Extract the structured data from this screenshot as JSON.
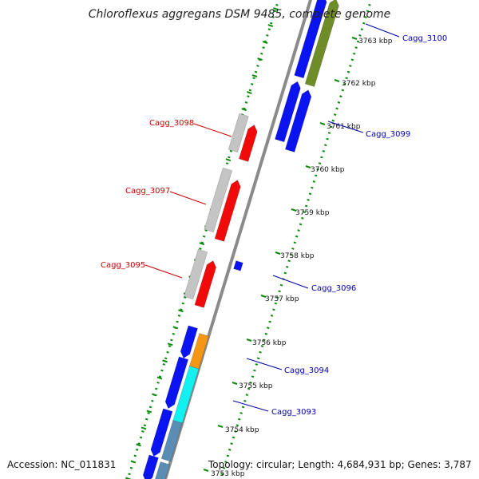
{
  "title": "Chloroflexus aggregans DSM 9485, complete genome",
  "accession": "Accession: NC_011831",
  "summary": "Topology: circular; Length: 4,684,931 bp; Genes: 3,787",
  "colors": {
    "blue": "#0a14f0",
    "red": "#f00a0a",
    "grey": "#c4c4c4",
    "olive": "#6e8c28",
    "orange": "#f59614",
    "cyan": "#14f0f0",
    "steel": "#5a8cb4",
    "backbone": "#8a8a8a",
    "dots": "#0a8c0a",
    "label_red": "#cc0000",
    "label_blue": "#0000aa"
  },
  "ticks": [
    {
      "label": "3763 kbp"
    },
    {
      "label": "3762 kbp"
    },
    {
      "label": "3761 kbp"
    },
    {
      "label": "3760 kbp"
    },
    {
      "label": "3759 kbp"
    },
    {
      "label": "3758 kbp"
    },
    {
      "label": "3757 kbp"
    },
    {
      "label": "3756 kbp"
    },
    {
      "label": "3755 kbp"
    },
    {
      "label": "3754 kbp"
    },
    {
      "label": "3753 kbp"
    }
  ],
  "gene_labels": [
    {
      "name": "Cagg_3100"
    },
    {
      "name": "Cagg_3099"
    },
    {
      "name": "Cagg_3098"
    },
    {
      "name": "Cagg_3097"
    },
    {
      "name": "Cagg_3096"
    },
    {
      "name": "Cagg_3095"
    },
    {
      "name": "Cagg_3094"
    },
    {
      "name": "Cagg_3093"
    }
  ]
}
